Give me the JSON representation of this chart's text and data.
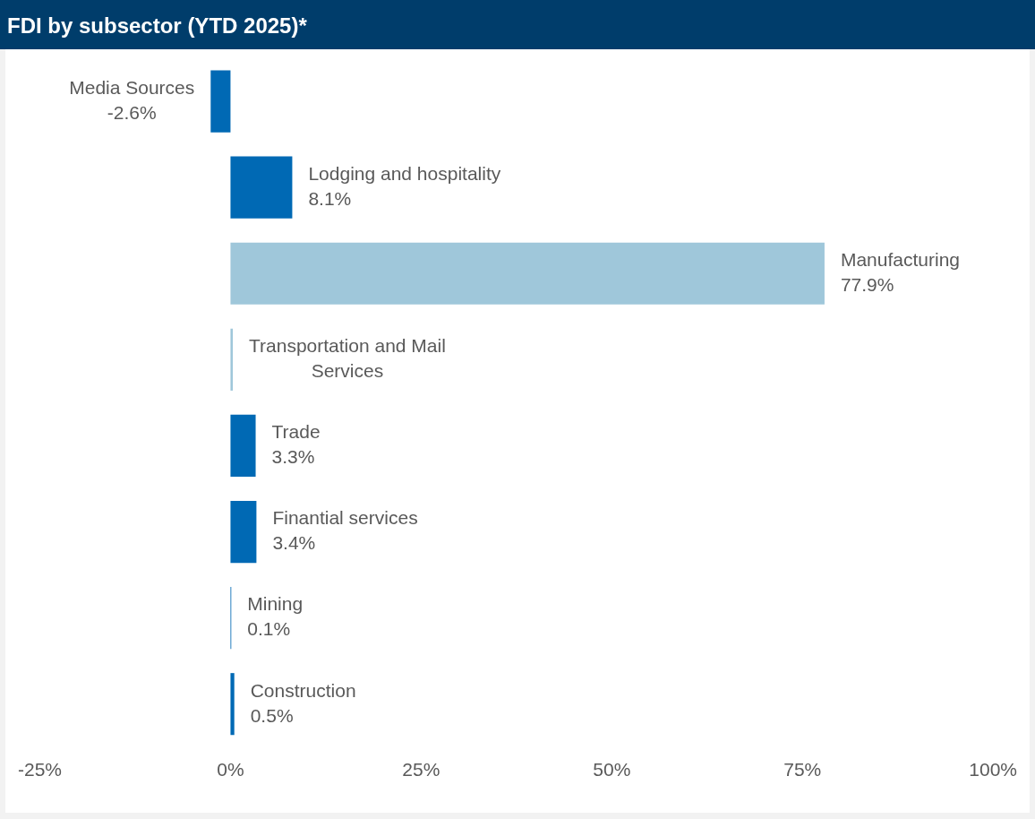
{
  "chart_data": {
    "type": "bar",
    "orientation": "horizontal",
    "title": "FDI by subsector (YTD 2025)*",
    "categories": [
      "Media Sources",
      "Lodging and hospitality",
      "Manufacturing",
      "Transportation and Mail Services",
      "Trade",
      "Finantial services",
      "Mining",
      "Construction"
    ],
    "values": [
      -2.6,
      8.1,
      77.9,
      0.3,
      3.3,
      3.4,
      0.1,
      0.5
    ],
    "value_labels": [
      "-2.6%",
      "8.1%",
      "77.9%",
      null,
      "3.3%",
      "3.4%",
      "0.1%",
      "0.5%"
    ],
    "colors": [
      "#0069b4",
      "#0069b4",
      "#9fc7da",
      "#9fc7da",
      "#0069b4",
      "#0069b4",
      "#0069b4",
      "#0069b4"
    ],
    "xlim": [
      -25,
      100
    ],
    "xticks": [
      {
        "value": -25,
        "label": "-25%"
      },
      {
        "value": 0,
        "label": "0%"
      },
      {
        "value": 25,
        "label": "25%"
      },
      {
        "value": 50,
        "label": "50%"
      },
      {
        "value": 75,
        "label": "75%"
      },
      {
        "value": 100,
        "label": "100%"
      }
    ],
    "tick_labels": "x",
    "grid": false,
    "legend": false
  }
}
